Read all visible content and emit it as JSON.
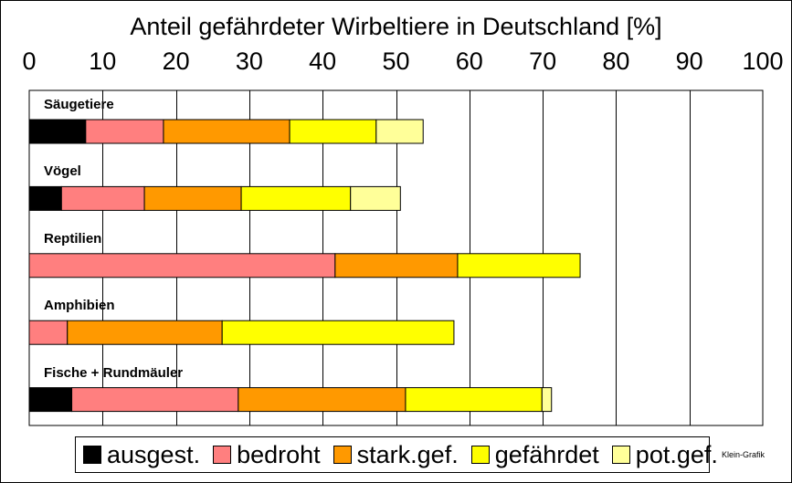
{
  "chart_data": {
    "type": "bar",
    "orientation": "horizontal",
    "stacked": true,
    "title": "Anteil gefährdeter Wirbeltiere in Deutschland [%]",
    "xlim": [
      0,
      100
    ],
    "xticks": [
      "0",
      "10",
      "20",
      "30",
      "40",
      "50",
      "60",
      "70",
      "80",
      "90",
      "100"
    ],
    "grid": true,
    "legend_position": "bottom",
    "categories": [
      "Säugetiere",
      "Vögel",
      "Reptilien",
      "Amphibien",
      "Fische + Rundmäuler"
    ],
    "series": [
      {
        "name": "ausgest.",
        "color": "#000000",
        "values": [
          7.7,
          4.4,
          0,
          0,
          5.8
        ]
      },
      {
        "name": "bedroht",
        "color": "#ff7f7f",
        "values": [
          10.6,
          11.3,
          41.7,
          5.2,
          22.7
        ]
      },
      {
        "name": "stark.gef.",
        "color": "#ff9900",
        "values": [
          17.2,
          13.2,
          16.7,
          21.1,
          22.8
        ]
      },
      {
        "name": "gefährdet",
        "color": "#ffff00",
        "values": [
          11.8,
          14.9,
          16.7,
          31.6,
          18.6
        ]
      },
      {
        "name": "pot.gef.",
        "color": "#ffff99",
        "values": [
          6.4,
          6.8,
          0,
          0,
          1.3
        ]
      }
    ]
  },
  "credit": "Klein-Grafik"
}
